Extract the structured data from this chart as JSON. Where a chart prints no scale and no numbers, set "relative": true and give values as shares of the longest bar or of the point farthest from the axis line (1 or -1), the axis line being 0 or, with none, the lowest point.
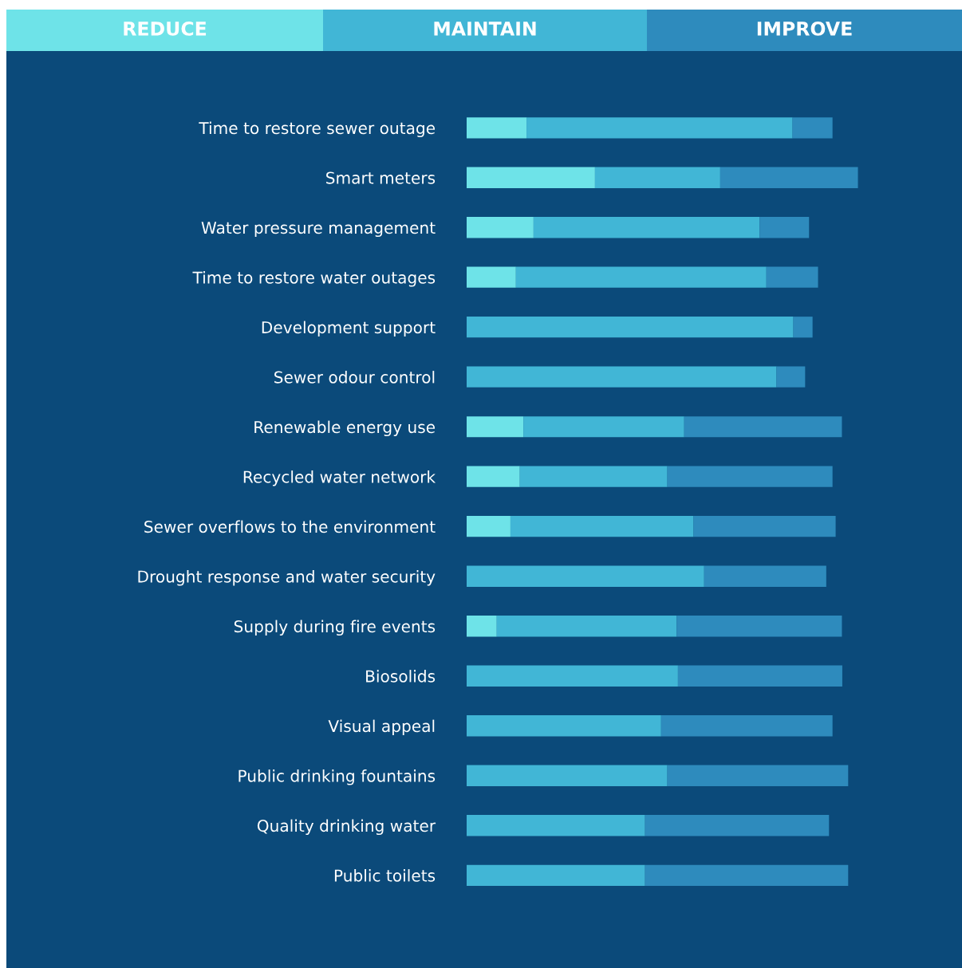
{
  "chart_data": {
    "type": "bar",
    "orientation": "horizontal",
    "stacked": true,
    "relative": true,
    "legend": "top",
    "grid": false,
    "categories": [
      "Time to restore sewer outage",
      "Smart meters",
      "Water pressure management",
      "Time to restore water outages",
      "Development support",
      "Sewer odour control",
      "Renewable energy use",
      "Recycled water network",
      "Sewer overflows to the environment",
      "Drought response and water security",
      "Supply during fire events",
      "Biosolids",
      "Visual appeal",
      "Public drinking fountains",
      "Quality drinking water",
      "Public toilets"
    ],
    "series": [
      {
        "name": "REDUCE",
        "color": "#6ee3e8",
        "values": [
          0.153,
          0.328,
          0.171,
          0.126,
          0,
          0,
          0.145,
          0.136,
          0.112,
          0,
          0.077,
          0,
          0,
          0,
          0,
          0
        ]
      },
      {
        "name": "MAINTAIN",
        "color": "#41b6d6",
        "values": [
          0.68,
          0.32,
          0.578,
          0.64,
          0.835,
          0.792,
          0.411,
          0.377,
          0.468,
          0.607,
          0.46,
          0.54,
          0.497,
          0.513,
          0.456,
          0.456
        ]
      },
      {
        "name": "IMPROVE",
        "color": "#2e8bbd",
        "values": [
          0.102,
          0.352,
          0.126,
          0.132,
          0.049,
          0.073,
          0.403,
          0.422,
          0.363,
          0.312,
          0.422,
          0.42,
          0.438,
          0.462,
          0.47,
          0.519
        ]
      }
    ]
  }
}
